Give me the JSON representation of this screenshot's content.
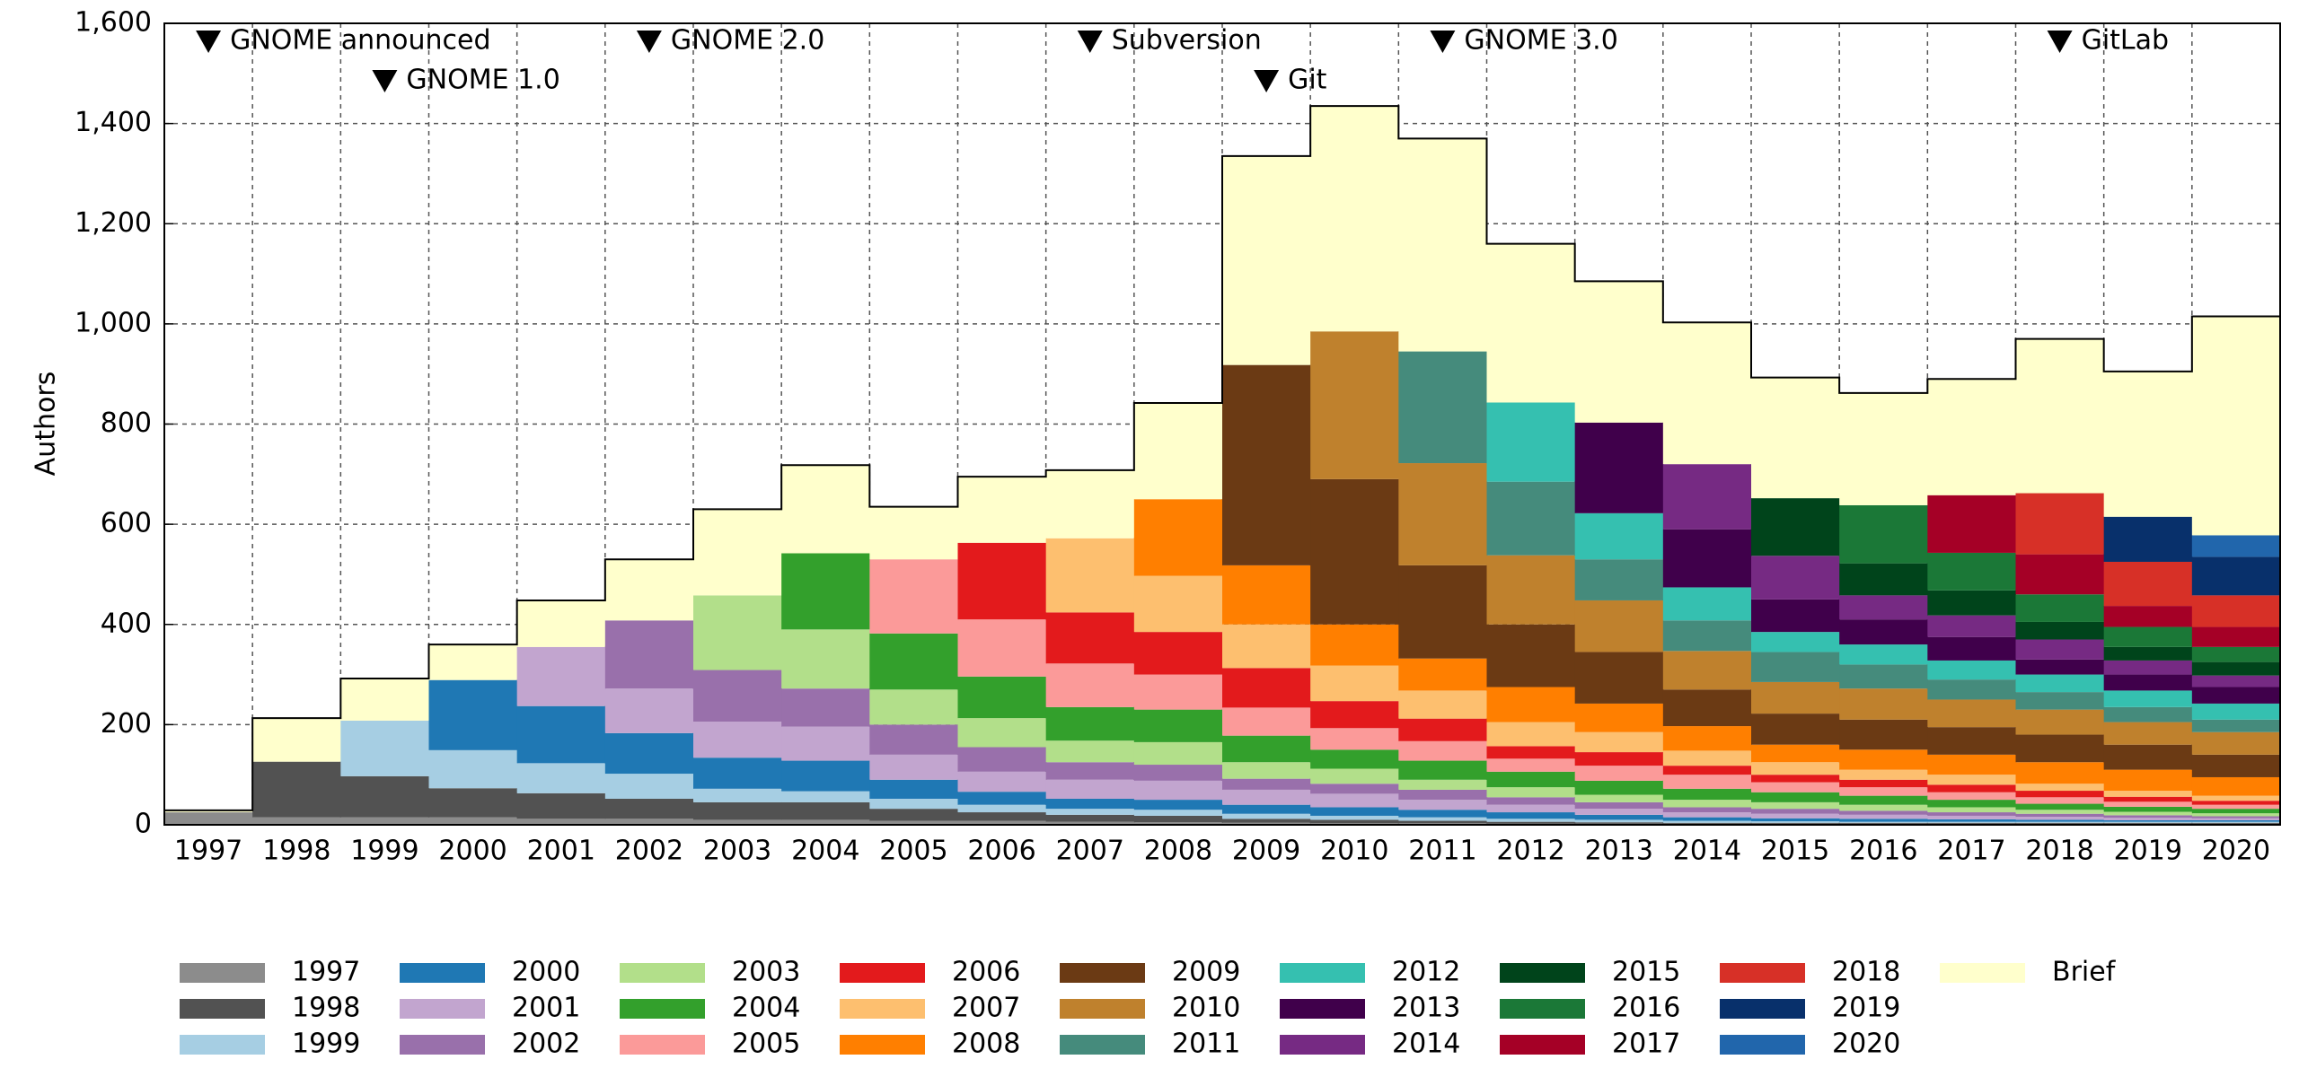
{
  "chart_data": {
    "type": "stacked_bar",
    "y_label": "Authors",
    "categories": [
      "1997",
      "1998",
      "1999",
      "2000",
      "2001",
      "2002",
      "2003",
      "2004",
      "2005",
      "2006",
      "2007",
      "2008",
      "2009",
      "2010",
      "2011",
      "2012",
      "2013",
      "2014",
      "2015",
      "2016",
      "2017",
      "2018",
      "2019",
      "2020"
    ],
    "ylim": [
      0,
      1600
    ],
    "yticks": [
      0,
      {
        "value": 200,
        "label": "200"
      },
      {
        "value": 400,
        "label": "400"
      },
      {
        "value": 600,
        "label": "600"
      },
      {
        "value": 800,
        "label": "800"
      },
      {
        "value": 1000,
        "label": "1,000"
      },
      {
        "value": 1200,
        "label": "1,200"
      },
      {
        "value": 1400,
        "label": "1,400"
      },
      {
        "value": 1600,
        "label": "1,600"
      }
    ],
    "grid": true,
    "annotations": [
      {
        "text": "GNOME announced",
        "at": "1997"
      },
      {
        "text": "GNOME 1.0",
        "at": "1999"
      },
      {
        "text": "GNOME 2.0",
        "at": "2002"
      },
      {
        "text": "Subversion",
        "at": "2007"
      },
      {
        "text": "Git",
        "at": "2009"
      },
      {
        "text": "GNOME 3.0",
        "at": "2011"
      },
      {
        "text": "GitLab",
        "at": "2018"
      }
    ],
    "series": [
      {
        "name": "1997",
        "color": "#8c8c8c",
        "values": [
          25,
          15,
          15,
          15,
          12,
          12,
          10,
          10,
          8,
          8,
          6,
          5,
          4,
          3,
          3,
          2,
          2,
          2,
          2,
          2,
          2,
          2,
          2,
          2
        ]
      },
      {
        "name": "1998",
        "color": "#525252",
        "values": [
          null,
          111,
          82,
          58,
          51,
          40,
          35,
          35,
          24,
          17,
          14,
          13,
          8,
          7,
          5,
          4,
          3,
          2,
          2,
          2,
          2,
          2,
          2,
          2
        ]
      },
      {
        "name": "1999",
        "color": "#a6cee3",
        "values": [
          null,
          null,
          111,
          76,
          60,
          50,
          27,
          22,
          20,
          15,
          12,
          12,
          10,
          8,
          7,
          6,
          5,
          4,
          3,
          2,
          2,
          2,
          2,
          2
        ]
      },
      {
        "name": "2000",
        "color": "#1f78b4",
        "values": [
          null,
          null,
          null,
          140,
          114,
          81,
          62,
          61,
          38,
          26,
          20,
          20,
          18,
          17,
          15,
          13,
          10,
          7,
          6,
          6,
          5,
          4,
          3,
          3
        ]
      },
      {
        "name": "2001",
        "color": "#c2a5cf",
        "values": [
          null,
          null,
          null,
          null,
          118,
          89,
          72,
          68,
          50,
          40,
          38,
          38,
          30,
          27,
          20,
          15,
          12,
          10,
          9,
          8,
          7,
          6,
          5,
          4
        ]
      },
      {
        "name": "2002",
        "color": "#9970ab",
        "values": [
          null,
          null,
          null,
          null,
          null,
          136,
          103,
          76,
          60,
          49,
          35,
          32,
          22,
          20,
          20,
          15,
          13,
          10,
          10,
          8,
          7,
          6,
          5,
          4
        ]
      },
      {
        "name": "2003",
        "color": "#b2df8a",
        "values": [
          null,
          null,
          null,
          null,
          null,
          null,
          149,
          118,
          70,
          58,
          43,
          45,
          33,
          30,
          20,
          20,
          15,
          15,
          13,
          12,
          10,
          8,
          7,
          6
        ]
      },
      {
        "name": "2004",
        "color": "#33a02c",
        "values": [
          null,
          null,
          null,
          null,
          null,
          null,
          null,
          152,
          112,
          83,
          67,
          65,
          53,
          38,
          38,
          31,
          28,
          22,
          20,
          18,
          15,
          12,
          10,
          9
        ]
      },
      {
        "name": "2005",
        "color": "#fb9a99",
        "values": [
          null,
          null,
          null,
          null,
          null,
          null,
          null,
          null,
          148,
          114,
          87,
          70,
          56,
          43,
          39,
          26,
          30,
          28,
          20,
          17,
          15,
          13,
          10,
          8
        ]
      },
      {
        "name": "2006",
        "color": "#e31a1c",
        "values": [
          null,
          null,
          null,
          null,
          null,
          null,
          null,
          null,
          null,
          153,
          102,
          85,
          79,
          54,
          45,
          25,
          27,
          18,
          15,
          15,
          15,
          13,
          10,
          8
        ]
      },
      {
        "name": "2007",
        "color": "#fdbf6f",
        "values": [
          null,
          null,
          null,
          null,
          null,
          null,
          null,
          null,
          null,
          null,
          148,
          112,
          87,
          71,
          56,
          48,
          40,
          30,
          25,
          20,
          20,
          14,
          12,
          10
        ]
      },
      {
        "name": "2008",
        "color": "#ff7f00",
        "values": [
          null,
          null,
          null,
          null,
          null,
          null,
          null,
          null,
          null,
          null,
          null,
          153,
          118,
          82,
          64,
          70,
          57,
          49,
          35,
          40,
          40,
          43,
          42,
          37
        ]
      },
      {
        "name": "2009",
        "color": "#6b3a14",
        "values": [
          null,
          null,
          null,
          null,
          null,
          null,
          null,
          null,
          null,
          null,
          null,
          null,
          400,
          290,
          186,
          125,
          103,
          73,
          62,
          60,
          55,
          55,
          50,
          45
        ]
      },
      {
        "name": "2010",
        "color": "#bf812d",
        "values": [
          null,
          null,
          null,
          null,
          null,
          null,
          null,
          null,
          null,
          null,
          null,
          null,
          null,
          295,
          204,
          138,
          103,
          77,
          63,
          62,
          55,
          50,
          45,
          45
        ]
      },
      {
        "name": "2011",
        "color": "#458b7c",
        "values": [
          null,
          null,
          null,
          null,
          null,
          null,
          null,
          null,
          null,
          null,
          null,
          null,
          null,
          null,
          223,
          147,
          82,
          61,
          60,
          48,
          40,
          35,
          30,
          25
        ]
      },
      {
        "name": "2012",
        "color": "#35c0b0",
        "values": [
          null,
          null,
          null,
          null,
          null,
          null,
          null,
          null,
          null,
          null,
          null,
          null,
          null,
          null,
          null,
          158,
          92,
          66,
          40,
          40,
          38,
          35,
          33,
          32
        ]
      },
      {
        "name": "2013",
        "color": "#40004b",
        "values": [
          null,
          null,
          null,
          null,
          null,
          null,
          null,
          null,
          null,
          null,
          null,
          null,
          null,
          null,
          null,
          null,
          181,
          116,
          65,
          50,
          47,
          30,
          32,
          33
        ]
      },
      {
        "name": "2014",
        "color": "#762a83",
        "values": [
          null,
          null,
          null,
          null,
          null,
          null,
          null,
          null,
          null,
          null,
          null,
          null,
          null,
          null,
          null,
          null,
          null,
          130,
          87,
          48,
          43,
          40,
          28,
          23
        ]
      },
      {
        "name": "2015",
        "color": "#00441b",
        "values": [
          null,
          null,
          null,
          null,
          null,
          null,
          null,
          null,
          null,
          null,
          null,
          null,
          null,
          null,
          null,
          null,
          null,
          null,
          115,
          64,
          50,
          35,
          27,
          27
        ]
      },
      {
        "name": "2016",
        "color": "#1b7837",
        "values": [
          null,
          null,
          null,
          null,
          null,
          null,
          null,
          null,
          null,
          null,
          null,
          null,
          null,
          null,
          null,
          null,
          null,
          null,
          null,
          116,
          75,
          55,
          40,
          30
        ]
      },
      {
        "name": "2017",
        "color": "#a50026",
        "values": [
          null,
          null,
          null,
          null,
          null,
          null,
          null,
          null,
          null,
          null,
          null,
          null,
          null,
          null,
          null,
          null,
          null,
          null,
          null,
          null,
          115,
          80,
          42,
          40
        ]
      },
      {
        "name": "2018",
        "color": "#d73027",
        "values": [
          null,
          null,
          null,
          null,
          null,
          null,
          null,
          null,
          null,
          null,
          null,
          null,
          null,
          null,
          null,
          null,
          null,
          null,
          null,
          null,
          null,
          122,
          88,
          63
        ]
      },
      {
        "name": "2019",
        "color": "#08306b",
        "values": [
          null,
          null,
          null,
          null,
          null,
          null,
          null,
          null,
          null,
          null,
          null,
          null,
          null,
          null,
          null,
          null,
          null,
          null,
          null,
          null,
          null,
          null,
          90,
          77
        ]
      },
      {
        "name": "2020",
        "color": "#2166ac",
        "values": [
          null,
          null,
          null,
          null,
          null,
          null,
          null,
          null,
          null,
          null,
          null,
          null,
          null,
          null,
          null,
          null,
          null,
          null,
          null,
          null,
          null,
          null,
          null,
          43
        ]
      },
      {
        "name": "Brief",
        "color": "#ffffcc",
        "values": [
          4,
          87,
          84,
          71,
          93,
          122,
          172,
          176,
          105,
          132,
          136,
          192,
          417,
          450,
          425,
          317,
          282,
          283,
          241,
          224,
          232,
          308,
          290,
          437
        ]
      }
    ]
  }
}
